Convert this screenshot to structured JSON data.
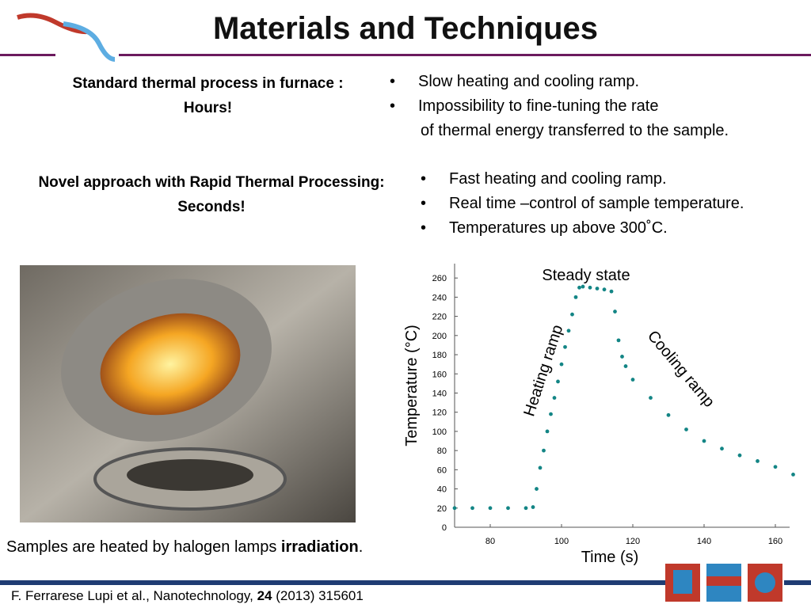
{
  "header": {
    "title": "Materials and Techniques"
  },
  "standard": {
    "heading": "Standard thermal process in furnace :",
    "subheading": "Hours!",
    "bullets": [
      "Slow heating and cooling ramp.",
      "Impossibility to fine-tuning the rate"
    ],
    "continuation": "of thermal energy transferred to the sample."
  },
  "novel": {
    "heading": "Novel approach with Rapid Thermal Processing:",
    "subheading": "Seconds!",
    "bullets": [
      "Fast  heating and cooling ramp.",
      "Real time –control of sample temperature.",
      "Temperatures up above 300˚C."
    ]
  },
  "caption": {
    "text": "Samples are heated by halogen lamps ",
    "bold": "irradiation",
    "end": "."
  },
  "citation": {
    "authors": "F. Ferrarese Lupi et al., Nanotechnology, ",
    "volume": "24",
    "rest": " (2013) 315601"
  },
  "chart_data": {
    "type": "scatter",
    "color": "#138585",
    "x_label": "Time (s)",
    "y_label": "Temperature (°C)",
    "annotations": [
      "Steady state",
      "Heating ramp",
      "Cooling ramp"
    ],
    "x": [
      70,
      75,
      80,
      85,
      90,
      92,
      93,
      94,
      95,
      96,
      97,
      98,
      99,
      100,
      101,
      102,
      103,
      104,
      105,
      106,
      108,
      110,
      112,
      114,
      115,
      116,
      117,
      118,
      120,
      125,
      130,
      135,
      140,
      145,
      150,
      155,
      160,
      165
    ],
    "values": [
      20,
      20,
      20,
      20,
      20,
      21,
      40,
      62,
      80,
      100,
      118,
      135,
      152,
      170,
      188,
      205,
      222,
      240,
      250,
      251,
      250,
      249,
      248,
      246,
      225,
      195,
      178,
      168,
      154,
      135,
      117,
      102,
      90,
      82,
      75,
      69,
      63,
      55
    ],
    "xlim": [
      70,
      164
    ],
    "ylim": [
      0,
      275
    ],
    "xticks": [
      80,
      100,
      120,
      140,
      160
    ],
    "yticks": [
      0,
      20,
      40,
      60,
      80,
      100,
      120,
      140,
      160,
      180,
      200,
      220,
      240,
      260
    ]
  }
}
